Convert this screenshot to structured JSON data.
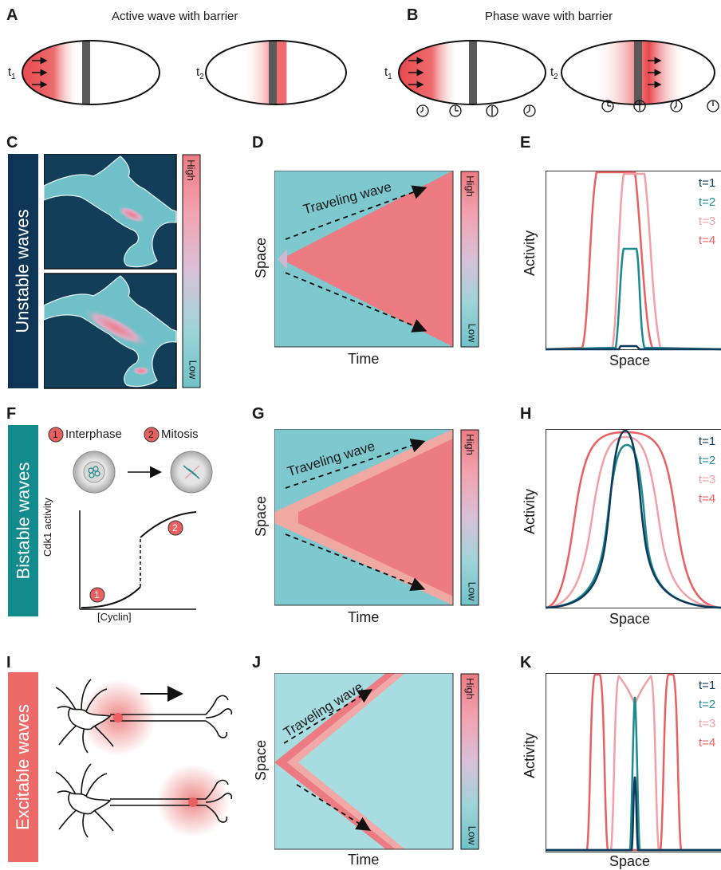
{
  "panels": {
    "A": {
      "letter": "A",
      "title": "Active wave with barrier",
      "t1": "t",
      "t1sub": "1",
      "t2": "t",
      "t2sub": "2"
    },
    "B": {
      "letter": "B",
      "title": "Phase wave with barrier",
      "t1": "t",
      "t1sub": "1",
      "t2": "t",
      "t2sub": "2"
    },
    "C": {
      "letter": "C",
      "row_label": "Unstable waves",
      "cb_high": "High",
      "cb_low": "Low"
    },
    "D": {
      "letter": "D",
      "annotation": "Traveling wave",
      "xlabel": "Time",
      "ylabel": "Space",
      "cb_high": "High",
      "cb_low": "Low"
    },
    "E": {
      "letter": "E",
      "xlabel": "Space",
      "ylabel": "Activity"
    },
    "F": {
      "letter": "F",
      "row_label": "Bistable waves",
      "state1_num": "1",
      "state1": "Interphase",
      "state2_num": "2",
      "state2": "Mitosis",
      "ylabel": "Cdk1 activity",
      "xlabel": "[Cyclin]",
      "m1": "1",
      "m2": "2"
    },
    "G": {
      "letter": "G",
      "annotation": "Traveling wave",
      "xlabel": "Time",
      "ylabel": "Space",
      "cb_high": "High",
      "cb_low": "Low"
    },
    "H": {
      "letter": "H",
      "xlabel": "Space",
      "ylabel": "Activity"
    },
    "I": {
      "letter": "I",
      "row_label": "Excitable waves"
    },
    "J": {
      "letter": "J",
      "annotation": "Traveling wave",
      "xlabel": "Time",
      "ylabel": "Space",
      "cb_high": "High",
      "cb_low": "Low"
    },
    "K": {
      "letter": "K",
      "xlabel": "Space",
      "ylabel": "Activity"
    }
  },
  "legend": [
    "t=1",
    "t=2",
    "t=3",
    "t=4"
  ],
  "colors": {
    "t1": "#0e3a5c",
    "t2": "#1e8a8f",
    "t3": "#f0a0a6",
    "t4": "#e8605f",
    "unstable": "#0f3556",
    "bistable": "#138a8c",
    "excitable": "#ec6a68",
    "high": "#ec7b82",
    "low": "#7dc9cf"
  }
}
